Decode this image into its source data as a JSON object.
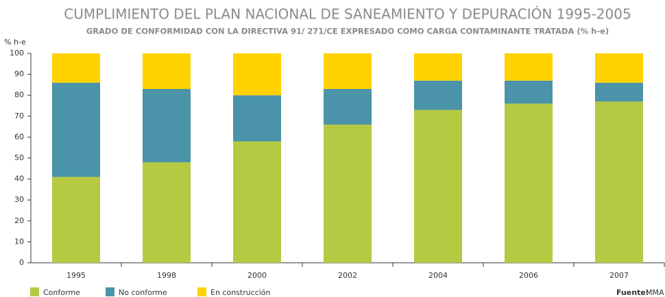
{
  "chart_data": {
    "type": "stacked_bar",
    "title": "CUMPLIMIENTO DEL PLAN NACIONAL DE SANEAMIENTO Y DEPURACIÓN 1995-2005",
    "subtitle": "GRADO DE CONFORMIDAD CON LA DIRECTIVA 91/ 271/CE  EXPRESADO COMO CARGA CONTAMINANTE TRATADA (% h-e)",
    "y_label": "% h-e",
    "categories": [
      "1995",
      "1998",
      "2000",
      "2002",
      "2004",
      "2006",
      "2007"
    ],
    "series": [
      {
        "name": "Conforme",
        "color": "#b5c942",
        "values": [
          41,
          48,
          58,
          66,
          73,
          76,
          77
        ]
      },
      {
        "name": "No conforme",
        "color": "#4a93a8",
        "values": [
          45,
          35,
          22,
          17,
          14,
          11,
          9
        ]
      },
      {
        "name": "En construcción",
        "color": "#ffd200",
        "values": [
          14,
          17,
          20,
          17,
          13,
          13,
          14
        ]
      }
    ],
    "ylim": [
      0,
      100
    ],
    "yticks": [
      0,
      10,
      20,
      30,
      40,
      50,
      60,
      70,
      80,
      90,
      100
    ],
    "source_label": "Fuente:",
    "source": "MMA"
  }
}
